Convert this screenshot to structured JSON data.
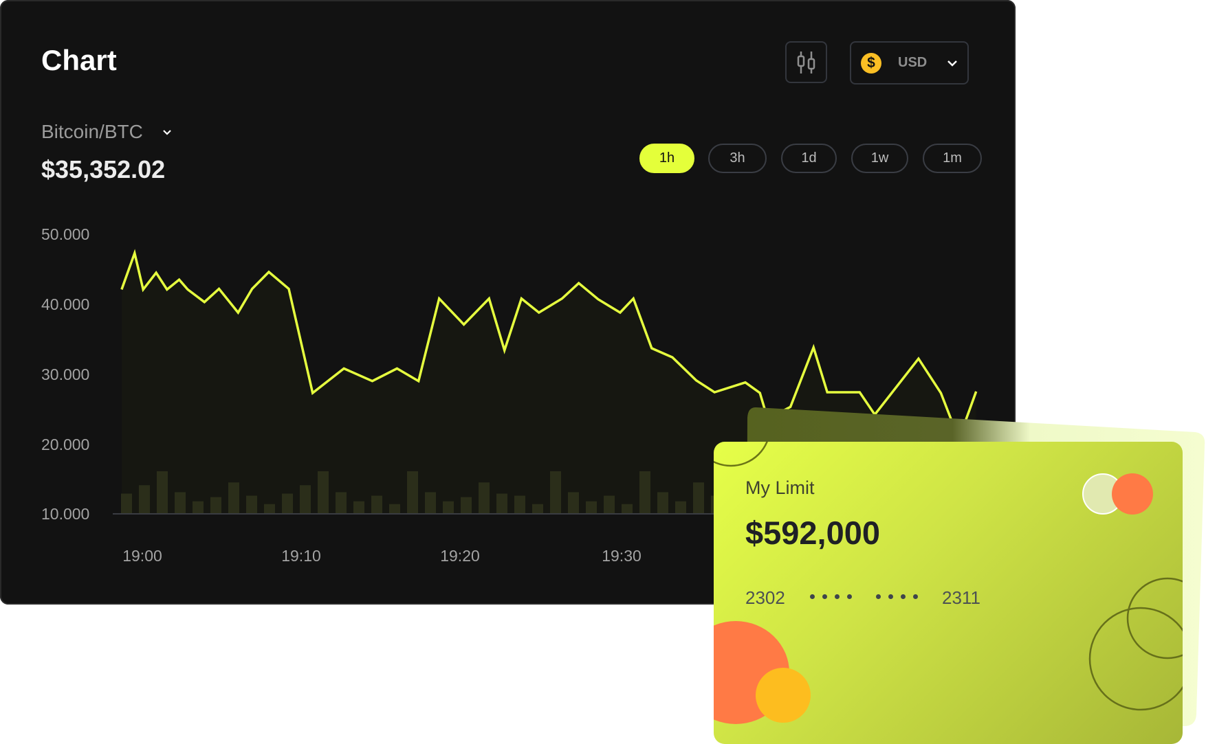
{
  "header": {
    "title": "Chart",
    "candle_icon": "candlestick-icon",
    "currency": {
      "icon": "dollar-coin-icon",
      "symbol": "$",
      "label": "USD",
      "chevron": "chevron-down-icon"
    }
  },
  "asset": {
    "pair": "Bitcoin/BTC",
    "price": "$35,352.02"
  },
  "timeframes": [
    {
      "label": "1h",
      "active": true
    },
    {
      "label": "3h",
      "active": false
    },
    {
      "label": "1d",
      "active": false
    },
    {
      "label": "1w",
      "active": false
    },
    {
      "label": "1m",
      "active": false
    }
  ],
  "colors": {
    "background": "#121212",
    "line": "#e6ff3f",
    "accent": "#e4ff3a",
    "volume": "#2b2e1a",
    "card_orange": "#ff7a45",
    "card_yellow": "#fdbd1f"
  },
  "chart_data": {
    "type": "line",
    "yticks": [
      "50.000",
      "40.000",
      "30.000",
      "20.000",
      "10.000"
    ],
    "ylim": [
      10000,
      50000
    ],
    "xticks": [
      "19:00",
      "19:10",
      "19:20",
      "19:30"
    ],
    "grid": false,
    "series": [
      {
        "points": [
          [
            "18:58:42",
            42100
          ],
          [
            "18:59:31",
            47300
          ],
          [
            "19:00:03",
            42100
          ],
          [
            "19:00:52",
            44500
          ],
          [
            "19:01:33",
            42100
          ],
          [
            "19:02:19",
            43500
          ],
          [
            "19:02:51",
            42100
          ],
          [
            "19:03:54",
            40300
          ],
          [
            "19:04:49",
            42200
          ],
          [
            "19:06:01",
            38800
          ],
          [
            "19:06:54",
            42200
          ],
          [
            "19:07:57",
            44600
          ],
          [
            "19:09:12",
            42200
          ],
          [
            "19:10:42",
            27300
          ],
          [
            "19:12:40",
            30800
          ],
          [
            "19:14:27",
            29000
          ],
          [
            "19:16:00",
            30800
          ],
          [
            "19:17:21",
            29000
          ],
          [
            "19:18:39",
            40800
          ],
          [
            "19:20:12",
            37100
          ],
          [
            "19:21:47",
            40800
          ],
          [
            "19:22:45",
            33400
          ],
          [
            "19:23:49",
            40800
          ],
          [
            "19:24:55",
            38800
          ],
          [
            "19:26:22",
            40800
          ],
          [
            "19:27:25",
            43000
          ],
          [
            "19:28:38",
            40700
          ],
          [
            "19:30:01",
            38800
          ],
          [
            "19:30:51",
            40800
          ],
          [
            "19:32:00",
            33700
          ],
          [
            "19:33:18",
            32400
          ],
          [
            "19:34:48",
            29100
          ],
          [
            "19:35:57",
            27400
          ],
          [
            "19:37:53",
            28800
          ],
          [
            "19:38:48",
            27300
          ],
          [
            "19:39:17",
            23600
          ],
          [
            "19:40:43",
            25300
          ],
          [
            "19:42:10",
            33800
          ],
          [
            "19:43:02",
            27400
          ],
          [
            "19:45:04",
            27400
          ],
          [
            "19:46:01",
            24200
          ],
          [
            "19:48:46",
            32200
          ],
          [
            "19:50:10",
            27300
          ],
          [
            "19:50:51",
            23300
          ],
          [
            "19:51:43",
            23300
          ],
          [
            "19:52:23",
            27500
          ]
        ]
      }
    ],
    "volume_bars": [
      12900,
      14100,
      16100,
      13100,
      11800,
      12400,
      14500,
      12600,
      11400,
      12900,
      14100,
      16100,
      13100,
      11800,
      12600,
      11400,
      16100,
      13100,
      11800,
      12400,
      14500,
      12900,
      12600,
      11400,
      16100,
      13100,
      11800,
      12600,
      11400,
      16100,
      13100,
      11800,
      14500,
      12600
    ]
  },
  "card": {
    "label": "My Limit",
    "amount": "$592,000",
    "number_start": "2302",
    "number_end": "2311",
    "masked_groups": 2,
    "logo_icon": "card-brand-logo-icon"
  }
}
